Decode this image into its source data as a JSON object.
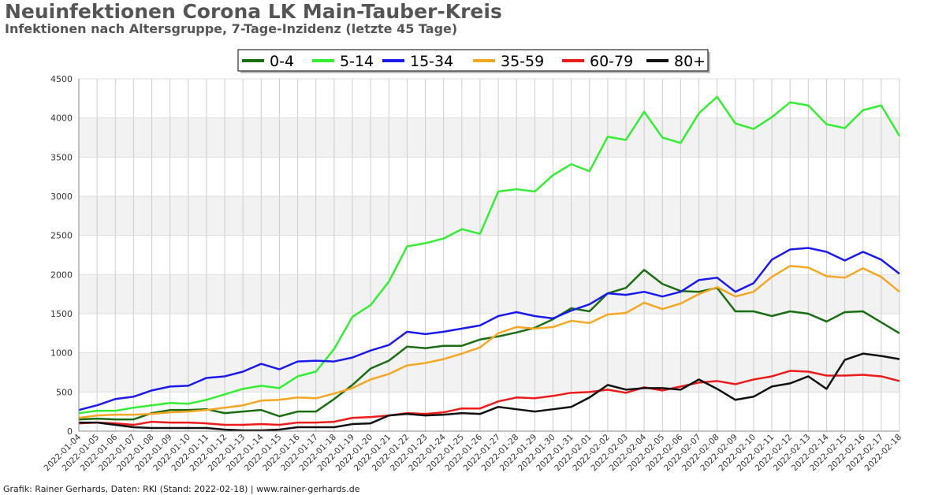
{
  "title": "Neuinfektionen Corona LK Main-Tauber-Kreis",
  "subtitle": "Infektionen nach Altersgruppe, 7-Tage-Inzidenz (letzte 45 Tage)",
  "footer": "Grafik: Rainer Gerhards, Daten: RKI (Stand: 2022-02-18) | www.rainer-gerhards.de",
  "chart_data": {
    "type": "line",
    "title": "Neuinfektionen Corona LK Main-Tauber-Kreis",
    "subtitle": "Infektionen nach Altersgruppe, 7-Tage-Inzidenz (letzte 45 Tage)",
    "xlabel": "",
    "ylabel": "",
    "ylim": [
      0,
      4500
    ],
    "yticks": [
      0,
      500,
      1000,
      1500,
      2000,
      2500,
      3000,
      3500,
      4000,
      4500
    ],
    "grid": true,
    "legend_position": "top-center",
    "x": [
      "2022-01-04",
      "2022-01-05",
      "2022-01-06",
      "2022-01-07",
      "2022-01-08",
      "2022-01-09",
      "2022-01-10",
      "2022-01-11",
      "2022-01-12",
      "2022-01-13",
      "2022-01-14",
      "2022-01-15",
      "2022-01-16",
      "2022-01-17",
      "2022-01-18",
      "2022-01-19",
      "2022-01-20",
      "2022-01-21",
      "2022-01-22",
      "2022-01-23",
      "2022-01-24",
      "2022-01-25",
      "2022-01-26",
      "2022-01-27",
      "2022-01-28",
      "2022-01-29",
      "2022-01-30",
      "2022-01-31",
      "2022-02-01",
      "2022-02-02",
      "2022-02-03",
      "2022-02-04",
      "2022-02-05",
      "2022-02-06",
      "2022-02-07",
      "2022-02-08",
      "2022-02-09",
      "2022-02-10",
      "2022-02-11",
      "2022-02-12",
      "2022-02-13",
      "2022-02-14",
      "2022-02-15",
      "2022-02-16",
      "2022-02-17",
      "2022-02-18"
    ],
    "series": [
      {
        "name": "0-4",
        "color": "#1a6e12",
        "values": [
          150,
          160,
          150,
          150,
          230,
          270,
          270,
          280,
          230,
          250,
          270,
          190,
          250,
          250,
          410,
          590,
          800,
          900,
          1080,
          1060,
          1090,
          1090,
          1170,
          1210,
          1260,
          1320,
          1430,
          1570,
          1530,
          1760,
          1830,
          2060,
          1880,
          1790,
          1780,
          1830,
          1530,
          1530,
          1470,
          1530,
          1500,
          1400,
          1520,
          1530,
          1390,
          1250
        ]
      },
      {
        "name": "5-14",
        "color": "#33ee33",
        "values": [
          230,
          260,
          260,
          300,
          330,
          360,
          350,
          400,
          470,
          540,
          580,
          550,
          700,
          760,
          1050,
          1460,
          1610,
          1910,
          2360,
          2400,
          2460,
          2580,
          2520,
          3060,
          3090,
          3060,
          3270,
          3410,
          3320,
          3760,
          3720,
          4080,
          3750,
          3680,
          4060,
          4270,
          3930,
          3860,
          4010,
          4200,
          4160,
          3920,
          3870,
          4100,
          4160,
          3770
        ]
      },
      {
        "name": "15-34",
        "color": "#1a1aee",
        "values": [
          270,
          330,
          410,
          440,
          520,
          570,
          580,
          680,
          700,
          760,
          860,
          790,
          890,
          900,
          890,
          940,
          1030,
          1100,
          1270,
          1240,
          1270,
          1310,
          1350,
          1470,
          1520,
          1470,
          1440,
          1540,
          1620,
          1760,
          1740,
          1780,
          1720,
          1780,
          1930,
          1960,
          1780,
          1890,
          2190,
          2320,
          2340,
          2290,
          2180,
          2290,
          2190,
          2010
        ]
      },
      {
        "name": "35-59",
        "color": "#f5a623",
        "values": [
          170,
          200,
          210,
          210,
          220,
          240,
          250,
          270,
          300,
          330,
          390,
          400,
          430,
          420,
          480,
          550,
          660,
          730,
          840,
          870,
          920,
          990,
          1070,
          1250,
          1330,
          1310,
          1330,
          1410,
          1380,
          1490,
          1510,
          1640,
          1560,
          1630,
          1750,
          1840,
          1720,
          1780,
          1970,
          2110,
          2090,
          1980,
          1960,
          2080,
          1970,
          1780
        ]
      },
      {
        "name": "60-79",
        "color": "#ee1a1a",
        "values": [
          100,
          110,
          100,
          80,
          120,
          110,
          110,
          100,
          80,
          80,
          90,
          80,
          110,
          110,
          120,
          170,
          180,
          200,
          230,
          220,
          240,
          290,
          290,
          380,
          430,
          420,
          450,
          490,
          500,
          530,
          490,
          560,
          520,
          570,
          620,
          640,
          600,
          660,
          700,
          770,
          760,
          710,
          710,
          720,
          700,
          640
        ]
      },
      {
        "name": "80+",
        "color": "#111111",
        "values": [
          110,
          110,
          80,
          50,
          40,
          40,
          40,
          40,
          20,
          10,
          10,
          20,
          50,
          50,
          50,
          90,
          100,
          200,
          220,
          200,
          210,
          230,
          220,
          310,
          280,
          250,
          280,
          310,
          430,
          590,
          530,
          550,
          550,
          530,
          660,
          540,
          400,
          440,
          570,
          610,
          700,
          540,
          910,
          990,
          960,
          920
        ]
      }
    ]
  }
}
